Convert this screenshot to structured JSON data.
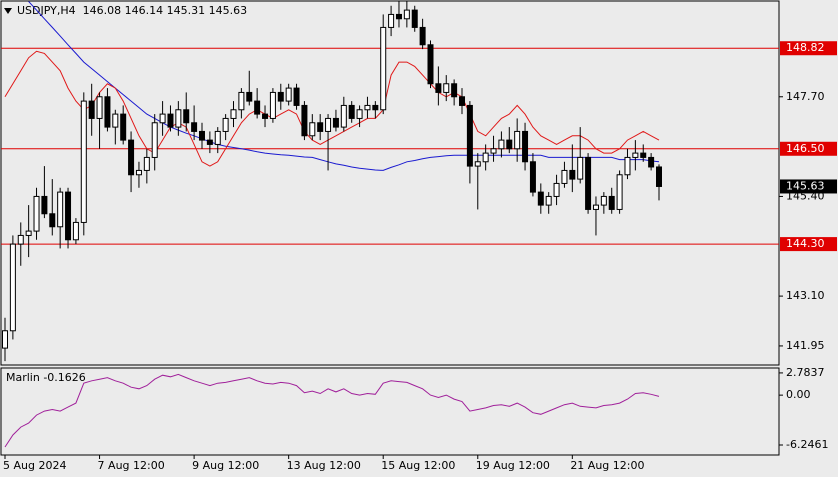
{
  "chart_data": [
    {
      "type": "candlestick",
      "title": "USDJPY,H4  146.08 146.14 145.31 145.63",
      "categories": [
        "5 Aug 2024",
        null,
        null,
        null,
        null,
        null,
        null,
        null,
        null,
        null,
        null,
        null,
        "7 Aug 12:00",
        null,
        null,
        null,
        null,
        null,
        null,
        null,
        null,
        null,
        null,
        null,
        "9 Aug 12:00",
        null,
        null,
        null,
        null,
        null,
        null,
        null,
        null,
        null,
        null,
        null,
        "13 Aug 12:00",
        null,
        null,
        null,
        null,
        null,
        null,
        null,
        null,
        null,
        null,
        null,
        "15 Aug 12:00",
        null,
        null,
        null,
        null,
        null,
        null,
        null,
        null,
        null,
        null,
        null,
        "19 Aug 12:00",
        null,
        null,
        null,
        null,
        null,
        null,
        null,
        null,
        null,
        null,
        null,
        "21 Aug 12:00",
        null,
        null,
        null,
        null,
        null,
        null,
        null,
        null,
        null,
        null,
        null
      ],
      "open": [
        141.9,
        142.3,
        144.3,
        144.5,
        144.6,
        145.4,
        145.0,
        144.7,
        145.5,
        144.4,
        144.8,
        147.6,
        147.2,
        147.7,
        147.0,
        147.3,
        146.7,
        145.9,
        146.0,
        146.3,
        147.1,
        147.3,
        147.0,
        147.4,
        147.1,
        146.9,
        146.7,
        146.6,
        146.9,
        147.2,
        147.4,
        147.8,
        147.6,
        147.3,
        147.2,
        147.8,
        147.6,
        147.9,
        147.5,
        146.8,
        147.1,
        146.9,
        147.2,
        147.0,
        147.5,
        147.2,
        147.4,
        147.5,
        147.4,
        149.3,
        149.6,
        149.5,
        149.7,
        149.3,
        148.9,
        148.0,
        147.8,
        148.0,
        147.7,
        147.5,
        146.1,
        146.2,
        146.4,
        146.5,
        146.7,
        146.5,
        146.9,
        146.2,
        145.5,
        145.2,
        145.4,
        145.7,
        146.0,
        145.8,
        146.3,
        145.1,
        145.2,
        145.4,
        145.1,
        145.9,
        146.3,
        146.4,
        146.3,
        146.08
      ],
      "high": [
        142.6,
        144.5,
        144.8,
        145.2,
        145.6,
        146.1,
        145.8,
        145.6,
        145.6,
        144.9,
        147.8,
        148.0,
        147.8,
        147.9,
        147.4,
        147.5,
        146.9,
        146.2,
        146.5,
        147.3,
        147.6,
        147.5,
        147.6,
        147.8,
        147.5,
        147.1,
        146.9,
        147.0,
        147.3,
        147.6,
        147.9,
        148.3,
        147.9,
        147.5,
        147.9,
        148.0,
        148.0,
        148.0,
        147.6,
        147.3,
        147.3,
        147.3,
        147.4,
        147.7,
        147.6,
        147.5,
        147.7,
        147.6,
        149.6,
        149.8,
        149.9,
        149.9,
        149.8,
        149.5,
        149.0,
        148.4,
        148.2,
        148.1,
        147.9,
        147.6,
        146.4,
        146.6,
        146.8,
        146.9,
        147.0,
        147.2,
        147.1,
        146.4,
        145.7,
        145.5,
        145.9,
        146.2,
        146.6,
        147.0,
        146.4,
        145.4,
        145.5,
        145.6,
        146.0,
        146.5,
        146.7,
        146.6,
        146.4,
        146.14
      ],
      "low": [
        141.6,
        142.1,
        143.8,
        144.0,
        144.4,
        144.9,
        144.5,
        144.2,
        144.2,
        144.3,
        144.5,
        146.8,
        146.5,
        146.9,
        146.6,
        146.6,
        145.5,
        145.6,
        145.7,
        146.0,
        146.8,
        146.9,
        146.8,
        146.9,
        146.7,
        146.5,
        146.4,
        146.4,
        146.7,
        147.0,
        147.2,
        147.5,
        147.2,
        147.0,
        147.1,
        147.4,
        147.5,
        147.4,
        146.7,
        146.7,
        146.7,
        146.0,
        146.9,
        146.9,
        147.1,
        147.0,
        147.2,
        147.2,
        147.3,
        149.1,
        149.3,
        149.3,
        149.2,
        148.8,
        147.9,
        147.5,
        147.6,
        147.5,
        147.3,
        145.7,
        145.1,
        146.0,
        146.2,
        146.3,
        146.4,
        146.2,
        146.0,
        145.4,
        145.0,
        145.0,
        145.2,
        145.6,
        145.5,
        145.7,
        145.0,
        144.5,
        145.0,
        145.0,
        145.0,
        145.8,
        146.0,
        146.2,
        146.0,
        145.31
      ],
      "close": [
        142.3,
        144.3,
        144.5,
        144.6,
        145.4,
        145.0,
        144.7,
        145.5,
        144.4,
        144.8,
        147.6,
        147.2,
        147.7,
        147.0,
        147.3,
        146.7,
        145.9,
        146.0,
        146.3,
        147.1,
        147.3,
        147.0,
        147.4,
        147.1,
        146.9,
        146.7,
        146.6,
        146.9,
        147.2,
        147.4,
        147.8,
        147.6,
        147.3,
        147.2,
        147.8,
        147.6,
        147.9,
        147.5,
        146.8,
        147.1,
        146.9,
        147.2,
        147.0,
        147.5,
        147.2,
        147.4,
        147.5,
        147.4,
        149.3,
        149.6,
        149.5,
        149.7,
        149.3,
        148.9,
        148.0,
        147.8,
        148.0,
        147.7,
        147.5,
        146.1,
        146.2,
        146.4,
        146.5,
        146.7,
        146.5,
        146.9,
        146.2,
        145.5,
        145.2,
        145.4,
        145.7,
        146.0,
        145.8,
        146.3,
        145.1,
        145.2,
        145.4,
        145.1,
        145.9,
        146.3,
        146.4,
        146.3,
        146.08,
        145.63
      ],
      "series": [
        {
          "color": "#1a1ad0",
          "values": [
            null,
            null,
            null,
            149.9,
            149.7,
            149.5,
            149.3,
            149.1,
            148.9,
            148.7,
            148.5,
            148.35,
            148.2,
            148.05,
            147.9,
            147.75,
            147.6,
            147.45,
            147.3,
            147.2,
            147.1,
            147.0,
            146.93,
            146.86,
            146.8,
            146.73,
            146.66,
            146.6,
            146.56,
            146.53,
            146.5,
            146.47,
            146.43,
            146.4,
            146.38,
            146.36,
            146.35,
            146.33,
            146.31,
            146.3,
            146.25,
            146.2,
            146.15,
            146.12,
            146.08,
            146.05,
            146.03,
            146.01,
            146.0,
            146.07,
            146.13,
            146.2,
            146.23,
            146.27,
            146.3,
            146.32,
            146.34,
            146.35,
            146.35,
            146.35,
            146.35,
            146.35,
            146.35,
            146.35,
            146.35,
            146.35,
            146.35,
            146.35,
            146.35,
            146.3,
            146.3,
            146.3,
            146.3,
            146.3,
            146.3,
            146.3,
            146.3,
            146.3,
            146.25,
            146.25,
            146.25,
            146.25,
            146.22,
            146.2
          ]
        },
        {
          "color": "#e01818",
          "values": [
            147.7,
            148.0,
            148.3,
            148.6,
            148.75,
            148.7,
            148.5,
            148.3,
            147.9,
            147.6,
            147.4,
            147.5,
            147.8,
            148.0,
            147.9,
            147.6,
            147.2,
            146.8,
            146.5,
            146.4,
            146.7,
            147.0,
            147.1,
            147.0,
            146.6,
            146.2,
            146.1,
            146.2,
            146.5,
            146.8,
            147.1,
            147.3,
            147.4,
            147.3,
            147.2,
            147.3,
            147.4,
            147.3,
            146.9,
            146.7,
            146.6,
            146.7,
            146.8,
            146.9,
            147.0,
            147.1,
            147.2,
            147.2,
            147.4,
            148.2,
            148.5,
            148.5,
            148.4,
            148.2,
            148.0,
            147.8,
            147.7,
            147.8,
            147.7,
            147.3,
            146.9,
            146.8,
            147.0,
            147.2,
            147.3,
            147.5,
            147.3,
            147.0,
            146.8,
            146.7,
            146.6,
            146.7,
            146.8,
            146.8,
            146.7,
            146.5,
            146.4,
            146.4,
            146.5,
            146.7,
            146.8,
            146.9,
            146.8,
            146.7
          ]
        }
      ],
      "levels": [
        148.82,
        {
          "value": 146.5,
          "label": "146.50"
        },
        {
          "value": 144.3,
          "label": "144.30"
        }
      ],
      "level_color": "#e00000",
      "ylim": [
        141.51,
        149.91
      ],
      "yticks": [
        {
          "value": 147.7,
          "label": "147.70"
        },
        {
          "value": 145.4,
          "label": "145.40"
        },
        {
          "value": 143.1,
          "label": "143.10"
        },
        141.95
      ]
    },
    {
      "type": "line",
      "title": "Marlin -0.1626",
      "series": [
        {
          "color": "#a0209a",
          "values": [
            -6.5,
            -5.0,
            -4.0,
            -3.5,
            -2.5,
            -2.0,
            -1.8,
            -2.0,
            -1.5,
            -1.0,
            1.5,
            1.8,
            2.0,
            2.2,
            1.8,
            1.5,
            1.0,
            0.8,
            1.2,
            2.0,
            2.5,
            2.3,
            2.6,
            2.2,
            1.8,
            1.5,
            1.2,
            1.5,
            1.6,
            1.8,
            2.0,
            2.2,
            1.8,
            1.5,
            1.4,
            1.6,
            1.5,
            1.2,
            0.3,
            0.5,
            0.2,
            0.8,
            0.4,
            0.8,
            0.2,
            0.0,
            0.2,
            0.1,
            1.5,
            1.8,
            1.7,
            1.6,
            1.2,
            0.8,
            0.0,
            -0.3,
            0.0,
            -0.5,
            -0.8,
            -2.0,
            -1.8,
            -1.6,
            -1.3,
            -1.2,
            -1.4,
            -1.0,
            -1.5,
            -2.2,
            -2.4,
            -2.0,
            -1.6,
            -1.2,
            -1.0,
            -1.4,
            -1.5,
            -1.6,
            -1.3,
            -1.2,
            -1.0,
            -0.5,
            0.2,
            0.3,
            0.1,
            -0.1626
          ]
        }
      ],
      "ylim": [
        -7.5,
        3.4
      ],
      "yticks": [
        2.7837,
        {
          "value": 0,
          "label": "0.00"
        },
        -6.2461
      ]
    }
  ]
}
